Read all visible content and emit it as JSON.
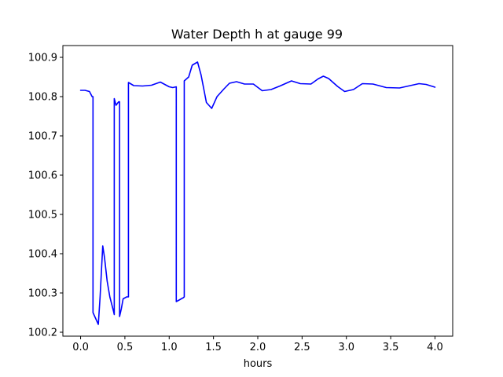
{
  "chart_data": {
    "type": "line",
    "title": "Water Depth h at gauge 99",
    "xlabel": "hours",
    "ylabel": "",
    "xlim": [
      -0.2,
      4.2
    ],
    "ylim": [
      100.19,
      100.93
    ],
    "xticks": [
      0.0,
      0.5,
      1.0,
      1.5,
      2.0,
      2.5,
      3.0,
      3.5,
      4.0
    ],
    "xtick_labels": [
      "0.0",
      "0.5",
      "1.0",
      "1.5",
      "2.0",
      "2.5",
      "3.0",
      "3.5",
      "4.0"
    ],
    "yticks": [
      100.2,
      100.3,
      100.4,
      100.5,
      100.6,
      100.7,
      100.8,
      100.9
    ],
    "ytick_labels": [
      "100.2",
      "100.3",
      "100.4",
      "100.5",
      "100.6",
      "100.7",
      "100.8",
      "100.9"
    ],
    "grid": false,
    "series": [
      {
        "color": "#0000ff",
        "x": [
          0.0,
          0.05,
          0.1,
          0.13,
          0.14,
          0.14,
          0.17,
          0.2,
          0.22,
          0.25,
          0.27,
          0.3,
          0.33,
          0.37,
          0.38,
          0.38,
          0.4,
          0.43,
          0.44,
          0.44,
          0.46,
          0.48,
          0.52,
          0.54,
          0.54,
          0.6,
          0.7,
          0.8,
          0.9,
          1.0,
          1.04,
          1.08,
          1.08,
          1.12,
          1.16,
          1.17,
          1.17,
          1.22,
          1.26,
          1.32,
          1.36,
          1.42,
          1.48,
          1.54,
          1.62,
          1.68,
          1.76,
          1.85,
          1.95,
          2.05,
          2.15,
          2.25,
          2.38,
          2.48,
          2.6,
          2.68,
          2.74,
          2.8,
          2.9,
          2.98,
          3.08,
          3.18,
          3.3,
          3.45,
          3.6,
          3.72,
          3.82,
          3.9,
          4.0
        ],
        "y": [
          100.816,
          100.816,
          100.813,
          100.8,
          100.8,
          100.25,
          100.235,
          100.22,
          100.29,
          100.42,
          100.39,
          100.33,
          100.29,
          100.255,
          100.245,
          100.795,
          100.778,
          100.787,
          100.787,
          100.24,
          100.26,
          100.285,
          100.29,
          100.29,
          100.836,
          100.828,
          100.827,
          100.829,
          100.837,
          100.825,
          100.823,
          100.825,
          100.278,
          100.283,
          100.288,
          100.29,
          100.84,
          100.85,
          100.88,
          100.888,
          100.855,
          100.785,
          100.77,
          100.8,
          100.82,
          100.834,
          100.838,
          100.832,
          100.832,
          100.815,
          100.818,
          100.827,
          100.84,
          100.833,
          100.832,
          100.845,
          100.852,
          100.846,
          100.826,
          100.813,
          100.818,
          100.833,
          100.832,
          100.823,
          100.822,
          100.828,
          100.833,
          100.831,
          100.824
        ]
      }
    ]
  }
}
